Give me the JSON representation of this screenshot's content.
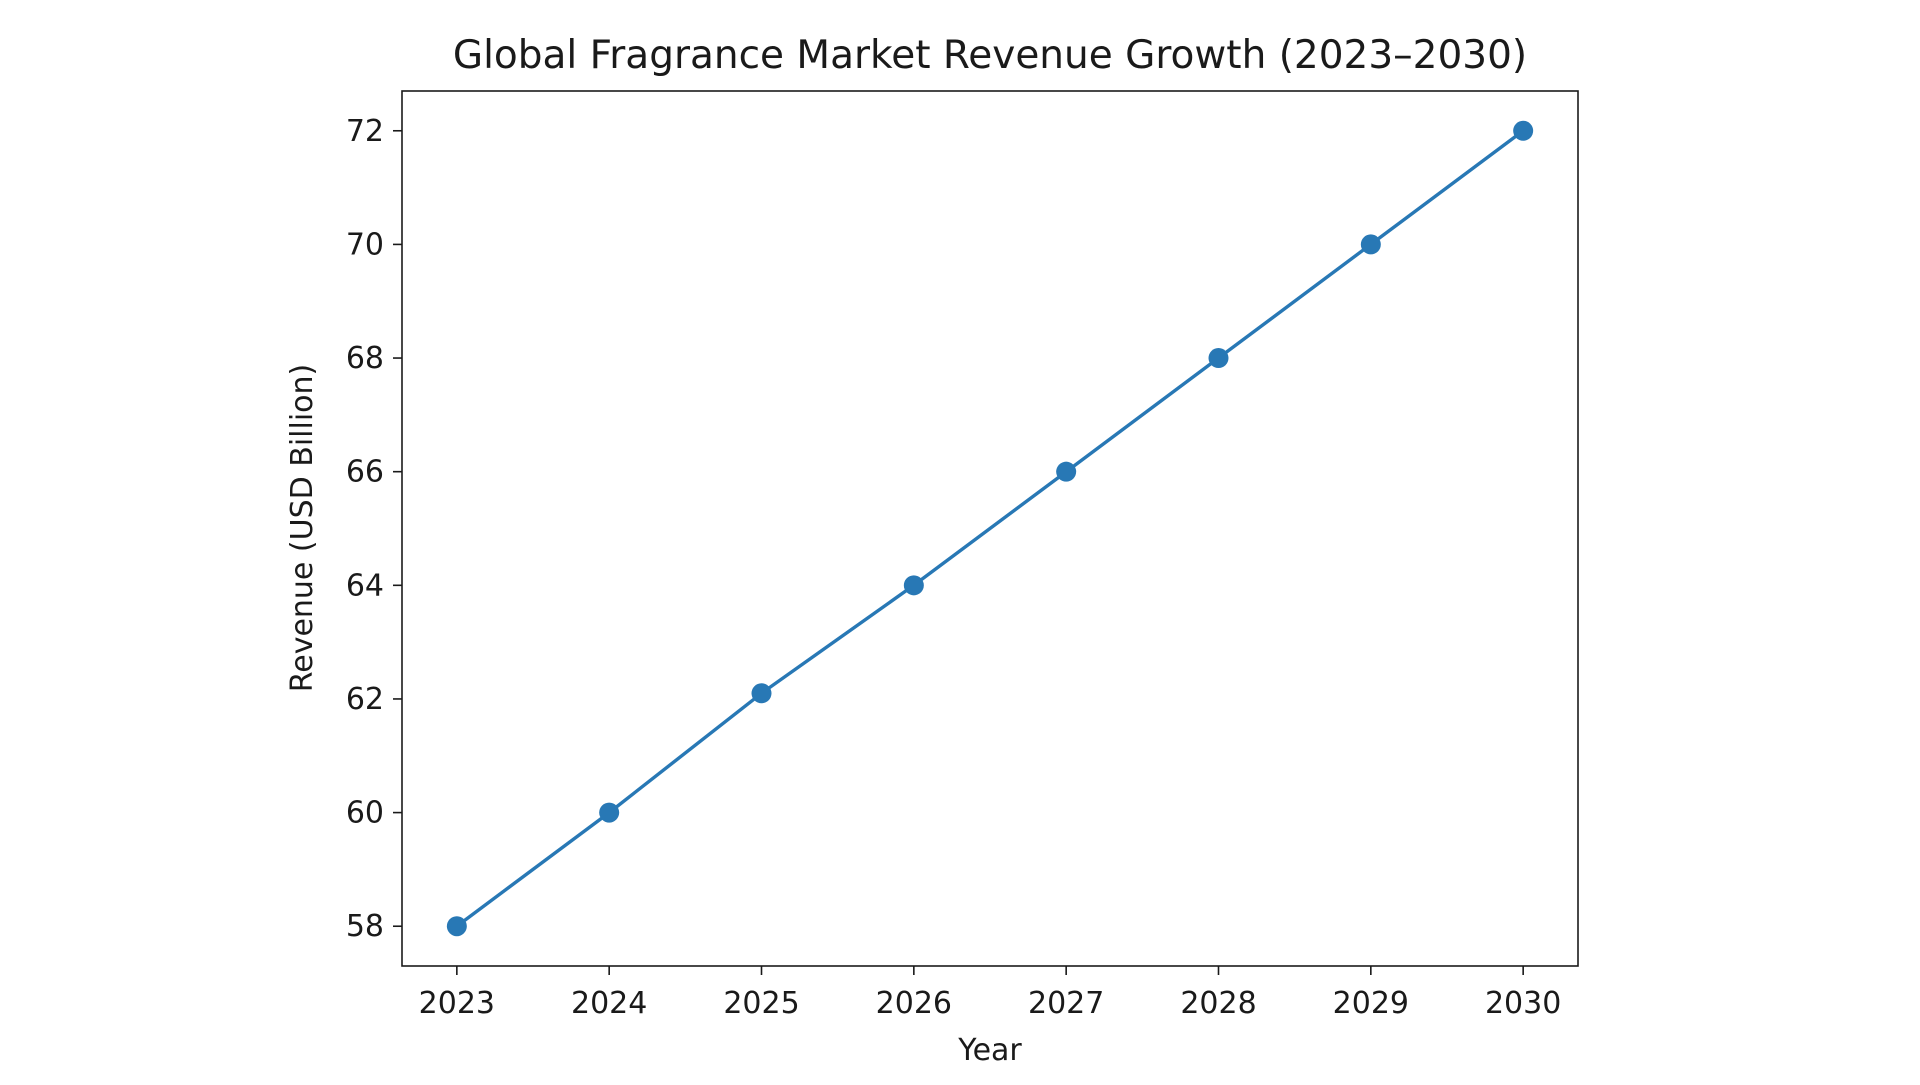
{
  "chart_data": {
    "type": "line",
    "title": "Global Fragrance Market Revenue Growth (2023–2030)",
    "xlabel": "Year",
    "ylabel": "Revenue (USD Billion)",
    "x": [
      2023,
      2024,
      2025,
      2026,
      2027,
      2028,
      2029,
      2030
    ],
    "series": [
      {
        "values": [
          58,
          60,
          62.1,
          64,
          66,
          68,
          70,
          72
        ],
        "color": "#2878b5"
      }
    ],
    "x_ticks": [
      "2023",
      "2024",
      "2025",
      "2026",
      "2027",
      "2028",
      "2029",
      "2030"
    ],
    "y_ticks": [
      "58",
      "60",
      "62",
      "64",
      "66",
      "68",
      "70",
      "72"
    ],
    "xlim": [
      2022.64,
      2030.36
    ],
    "ylim": [
      57.3,
      72.7
    ],
    "grid": false,
    "legend": "none",
    "marker": "circle"
  }
}
